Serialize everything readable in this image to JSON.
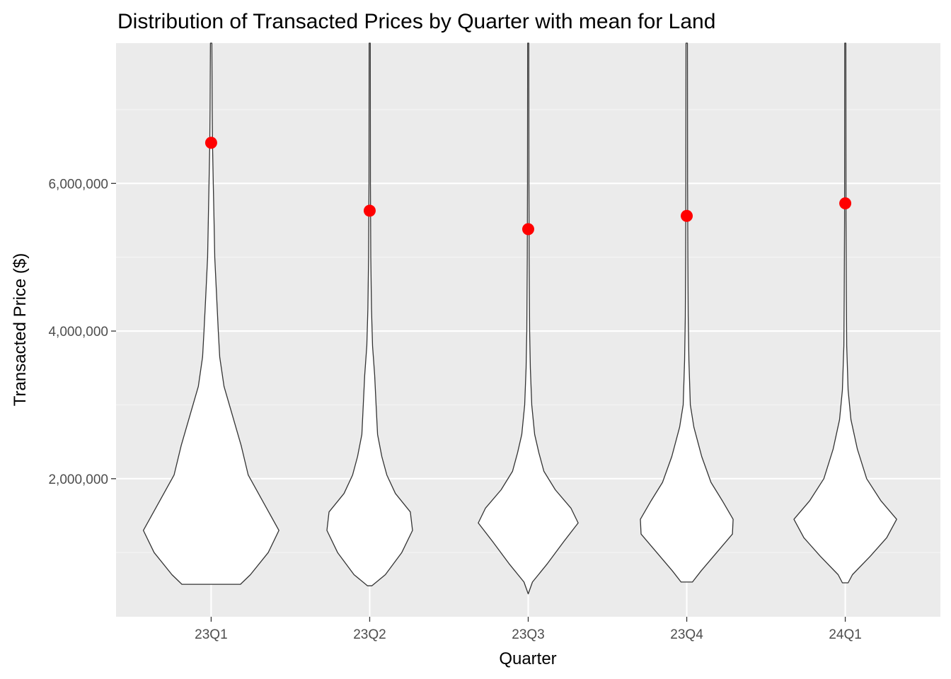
{
  "chart_data": {
    "type": "violin",
    "title": "Distribution of Transacted Prices by Quarter with mean for Land",
    "xlabel": "Quarter",
    "ylabel": "Transacted Price ($)",
    "categories": [
      "23Q1",
      "23Q2",
      "23Q3",
      "23Q4",
      "24Q1"
    ],
    "y_ticks": [
      2000000,
      4000000,
      6000000
    ],
    "y_tick_labels": [
      "2,000,000",
      "4,000,000",
      "6,000,000"
    ],
    "ylim": [
      130000,
      7900000
    ],
    "grid": true,
    "legend": "none",
    "means": [
      6550000,
      5630000,
      5380000,
      5560000,
      5730000
    ],
    "violins": [
      {
        "category": "23Q1",
        "min": 570000,
        "max": 7900000,
        "profile": [
          [
            570000,
            0.41
          ],
          [
            700000,
            0.55
          ],
          [
            1000000,
            0.8
          ],
          [
            1300000,
            0.95
          ],
          [
            1700000,
            0.72
          ],
          [
            2050000,
            0.52
          ],
          [
            2450000,
            0.42
          ],
          [
            2850000,
            0.3
          ],
          [
            3250000,
            0.18
          ],
          [
            3650000,
            0.12
          ],
          [
            4000000,
            0.1
          ],
          [
            4400000,
            0.08
          ],
          [
            5000000,
            0.05
          ],
          [
            5500000,
            0.04
          ],
          [
            6000000,
            0.03
          ],
          [
            6500000,
            0.02
          ],
          [
            7000000,
            0.015
          ],
          [
            7900000,
            0.01
          ]
        ]
      },
      {
        "category": "23Q2",
        "min": 550000,
        "max": 7900000,
        "profile": [
          [
            550000,
            0.03
          ],
          [
            700000,
            0.22
          ],
          [
            1000000,
            0.45
          ],
          [
            1300000,
            0.6
          ],
          [
            1550000,
            0.57
          ],
          [
            1800000,
            0.36
          ],
          [
            2050000,
            0.24
          ],
          [
            2300000,
            0.17
          ],
          [
            2600000,
            0.11
          ],
          [
            3000000,
            0.09
          ],
          [
            3400000,
            0.07
          ],
          [
            3800000,
            0.04
          ],
          [
            4300000,
            0.025
          ],
          [
            5000000,
            0.015
          ],
          [
            6000000,
            0.01
          ],
          [
            7900000,
            0.008
          ]
        ]
      },
      {
        "category": "23Q3",
        "min": 440000,
        "max": 7900000,
        "profile": [
          [
            440000,
            0.0
          ],
          [
            600000,
            0.06
          ],
          [
            850000,
            0.27
          ],
          [
            1150000,
            0.5
          ],
          [
            1400000,
            0.7
          ],
          [
            1600000,
            0.6
          ],
          [
            1850000,
            0.38
          ],
          [
            2100000,
            0.22
          ],
          [
            2350000,
            0.15
          ],
          [
            2600000,
            0.09
          ],
          [
            3000000,
            0.05
          ],
          [
            3500000,
            0.03
          ],
          [
            4000000,
            0.02
          ],
          [
            5000000,
            0.013
          ],
          [
            6000000,
            0.01
          ],
          [
            7900000,
            0.008
          ]
        ]
      },
      {
        "category": "23Q4",
        "min": 600000,
        "max": 7900000,
        "profile": [
          [
            600000,
            0.08
          ],
          [
            750000,
            0.2
          ],
          [
            1000000,
            0.42
          ],
          [
            1250000,
            0.64
          ],
          [
            1450000,
            0.65
          ],
          [
            1700000,
            0.5
          ],
          [
            1950000,
            0.34
          ],
          [
            2300000,
            0.21
          ],
          [
            2700000,
            0.1
          ],
          [
            3000000,
            0.05
          ],
          [
            3600000,
            0.03
          ],
          [
            4200000,
            0.02
          ],
          [
            5000000,
            0.015
          ],
          [
            6000000,
            0.012
          ],
          [
            7900000,
            0.01
          ]
        ]
      },
      {
        "category": "24Q1",
        "min": 590000,
        "max": 7900000,
        "profile": [
          [
            590000,
            0.04
          ],
          [
            700000,
            0.1
          ],
          [
            950000,
            0.35
          ],
          [
            1200000,
            0.58
          ],
          [
            1450000,
            0.72
          ],
          [
            1700000,
            0.5
          ],
          [
            2000000,
            0.3
          ],
          [
            2400000,
            0.17
          ],
          [
            2800000,
            0.08
          ],
          [
            3200000,
            0.04
          ],
          [
            3800000,
            0.02
          ],
          [
            4500000,
            0.015
          ],
          [
            5500000,
            0.01
          ],
          [
            7900000,
            0.008
          ]
        ]
      }
    ],
    "colors": {
      "panel_background": "#EBEBEB",
      "grid_major": "#FFFFFF",
      "grid_minor": "#F5F5F5",
      "violin_fill": "#FFFFFF",
      "violin_outline": "#333333",
      "mean_point": "#FF0000",
      "tick_label": "#4D4D4D",
      "axis_tick": "#333333"
    }
  }
}
